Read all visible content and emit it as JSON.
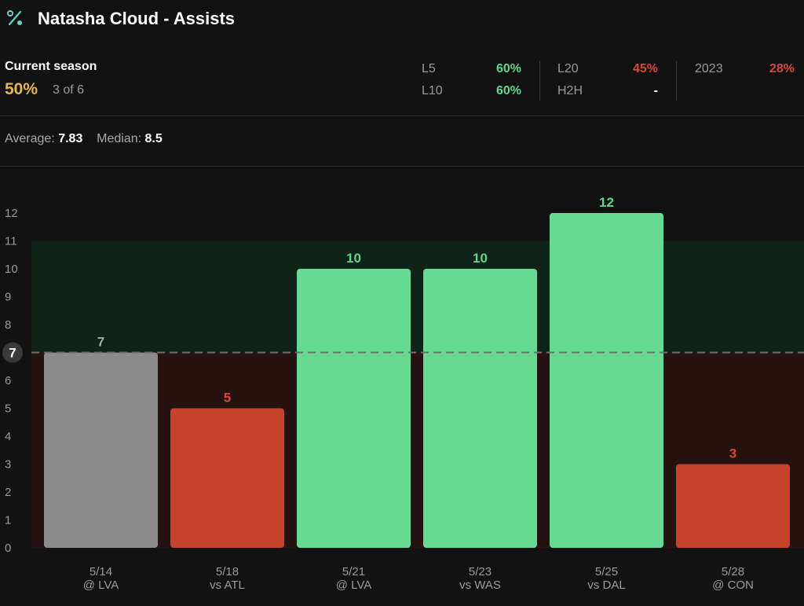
{
  "header": {
    "icon": "percent-icon",
    "title": "Natasha Cloud - Assists"
  },
  "season": {
    "label": "Current season",
    "pct": "50%",
    "count": "3 of 6"
  },
  "stats": {
    "l5_label": "L5",
    "l5_value": "60%",
    "l10_label": "L10",
    "l10_value": "60%",
    "l20_label": "L20",
    "l20_value": "45%",
    "h2h_label": "H2H",
    "h2h_value": "-",
    "y2023_label": "2023",
    "y2023_value": "28%"
  },
  "summary": {
    "average_label": "Average:",
    "average_value": "7.83",
    "median_label": "Median:",
    "median_value": "8.5"
  },
  "colors": {
    "hit": "#66d993",
    "miss": "#c5432b",
    "push": "#8a8a8a",
    "season_pct": "#e8b64a"
  },
  "chart_data": {
    "type": "bar",
    "line": 7,
    "ylim": [
      0,
      12
    ],
    "yticks": [
      0,
      1,
      2,
      3,
      4,
      5,
      6,
      7,
      8,
      9,
      10,
      11,
      12
    ],
    "categories": [
      {
        "date": "5/14",
        "opp": "@ LVA",
        "value": 7,
        "result": "push"
      },
      {
        "date": "5/18",
        "opp": "vs ATL",
        "value": 5,
        "result": "miss"
      },
      {
        "date": "5/21",
        "opp": "@ LVA",
        "value": 10,
        "result": "hit"
      },
      {
        "date": "5/23",
        "opp": "vs WAS",
        "value": 10,
        "result": "hit"
      },
      {
        "date": "5/25",
        "opp": "vs DAL",
        "value": 12,
        "result": "hit"
      },
      {
        "date": "5/28",
        "opp": "@ CON",
        "value": 3,
        "result": "miss"
      }
    ]
  }
}
